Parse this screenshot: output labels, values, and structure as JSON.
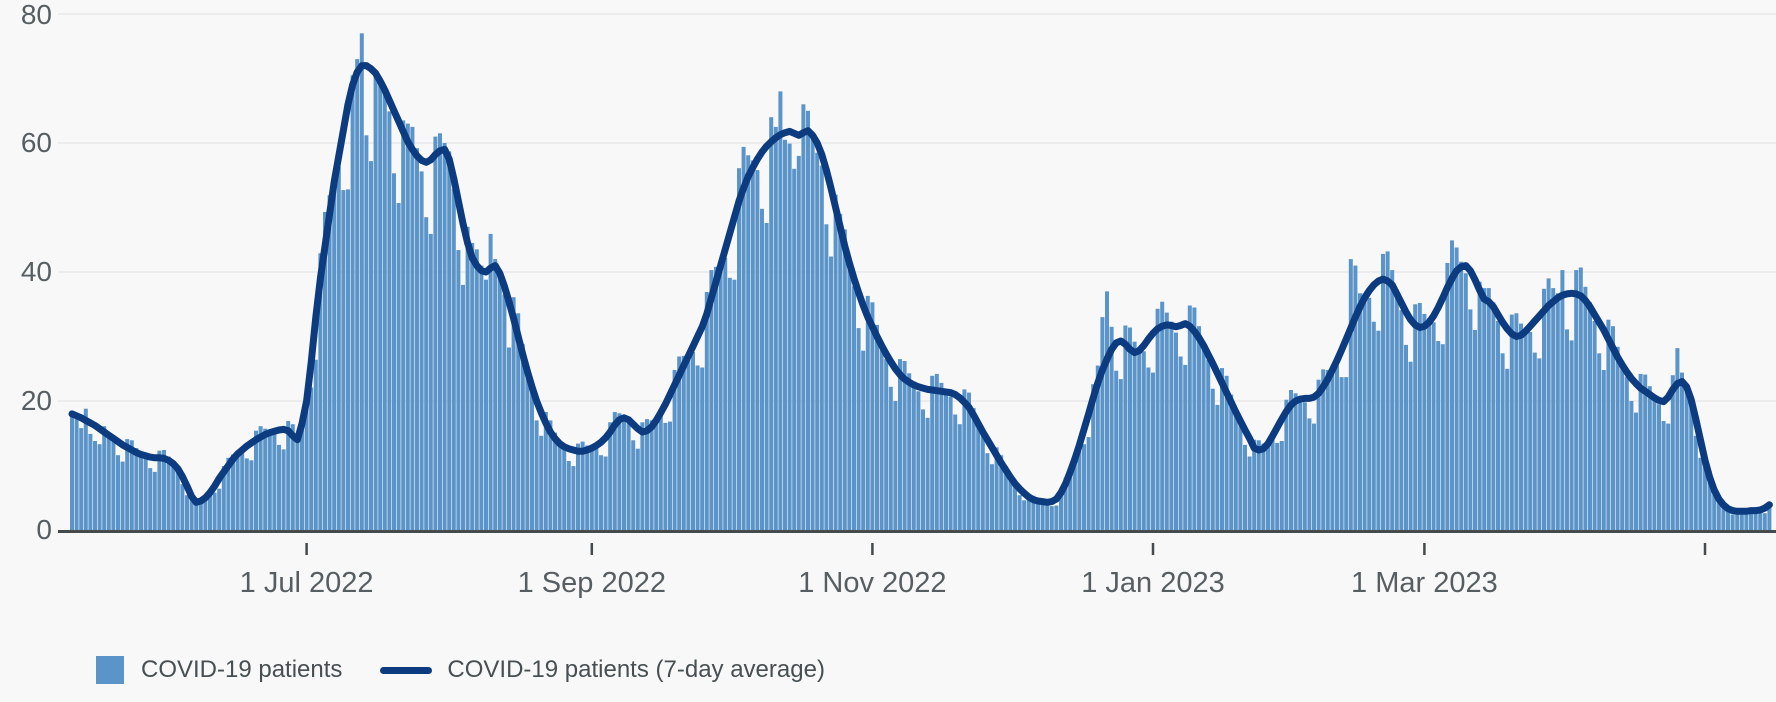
{
  "chart_data": {
    "type": "bar",
    "title": "",
    "xlabel": "",
    "ylabel": "",
    "ylim": [
      0,
      80
    ],
    "y_ticks": [
      0,
      20,
      40,
      60,
      80
    ],
    "grid": "horizontal",
    "legend_position": "bottom-left",
    "x_unit": "day",
    "x_ticks": [
      {
        "label": "1 Jul 2022",
        "day": 51
      },
      {
        "label": "1 Sep 2022",
        "day": 113
      },
      {
        "label": "1 Nov 2022",
        "day": 174
      },
      {
        "label": "1 Jan 2023",
        "day": 235
      },
      {
        "label": "1 Mar 2023",
        "day": 294
      },
      {
        "label": "",
        "day": 355
      }
    ],
    "series": [
      {
        "name": "COVID-19 patients",
        "render": "bar",
        "color": "#5b94c8",
        "values": [
          17.7,
          17.2,
          15.8,
          18.8,
          14.9,
          13.8,
          13.3,
          16.1,
          15.0,
          13.8,
          11.6,
          10.6,
          14.1,
          13.9,
          12.7,
          11.9,
          11.2,
          9.6,
          9.0,
          12.3,
          12.4,
          11.4,
          10.5,
          9.2,
          7.1,
          5.4,
          5.7,
          4.8,
          4.8,
          5.1,
          5.6,
          5.8,
          6.4,
          9.9,
          11.2,
          11.7,
          12.0,
          12.0,
          11.1,
          10.8,
          15.4,
          16.1,
          15.7,
          15.4,
          14.8,
          13.2,
          12.5,
          16.9,
          16.4,
          14.8,
          16.8,
          19.4,
          22.1,
          26.4,
          42.9,
          49.3,
          51.9,
          55.1,
          56.3,
          52.7,
          52.8,
          70.5,
          73.0,
          77.0,
          61.2,
          57.2,
          71.0,
          70.0,
          68.8,
          64.9,
          55.3,
          50.7,
          63.5,
          63.0,
          62.5,
          59.2,
          55.6,
          48.5,
          45.9,
          61.0,
          61.5,
          60.0,
          58.7,
          52.9,
          43.4,
          38.0,
          47.0,
          44.5,
          43.5,
          41.0,
          38.8,
          45.9,
          42.0,
          39.8,
          36.5,
          28.3,
          36.1,
          33.6,
          28.8,
          25.1,
          21.5,
          17.0,
          14.6,
          18.3,
          17.0,
          15.1,
          13.7,
          12.5,
          10.7,
          9.9,
          13.4,
          13.7,
          13.1,
          13.0,
          12.7,
          11.6,
          11.4,
          16.7,
          18.3,
          18.1,
          17.7,
          16.6,
          13.9,
          12.6,
          16.7,
          17.2,
          17.0,
          17.3,
          17.7,
          16.6,
          16.8,
          24.8,
          26.9,
          27.0,
          27.5,
          27.6,
          25.5,
          25.2,
          36.9,
          40.3,
          40.8,
          41.8,
          42.2,
          39.1,
          38.8,
          56.1,
          59.4,
          58.1,
          57.3,
          55.8,
          49.8,
          47.6,
          64.0,
          62.5,
          68.0,
          60.5,
          59.9,
          56.0,
          58.0,
          66.0,
          65.0,
          61.5,
          58.5,
          56.5,
          47.4,
          42.4,
          52.0,
          49.0,
          46.6,
          42.2,
          37.8,
          31.3,
          27.8,
          36.3,
          35.3,
          31.8,
          29.2,
          26.5,
          22.2,
          20.0,
          26.5,
          26.2,
          24.3,
          23.0,
          21.5,
          18.7,
          17.4,
          23.9,
          24.2,
          22.8,
          21.8,
          20.7,
          17.9,
          16.4,
          21.8,
          21.3,
          18.9,
          16.8,
          14.7,
          11.9,
          10.2,
          12.8,
          11.6,
          9.9,
          8.4,
          7.0,
          5.4,
          4.6,
          5.6,
          5.3,
          4.8,
          4.5,
          4.2,
          3.7,
          3.8,
          6.4,
          8.1,
          9.5,
          11.2,
          12.8,
          13.3,
          14.4,
          22.6,
          25.5,
          33.0,
          37.0,
          31.5,
          24.7,
          23.4,
          31.7,
          31.4,
          29.2,
          28.4,
          27.7,
          25.2,
          24.4,
          34.3,
          35.4,
          33.7,
          32.3,
          30.6,
          26.9,
          25.6,
          34.8,
          34.5,
          31.6,
          29.2,
          26.4,
          21.9,
          19.4,
          25.1,
          23.9,
          21.0,
          18.7,
          16.4,
          13.2,
          11.4,
          14.0,
          13.9,
          13.4,
          13.7,
          14.2,
          13.5,
          13.8,
          20.2,
          21.7,
          21.2,
          20.7,
          19.8,
          17.3,
          16.5,
          23.3,
          24.9,
          24.8,
          25.3,
          25.5,
          23.7,
          23.7,
          42.0,
          41.0,
          36.7,
          36.7,
          36.0,
          32.3,
          30.9,
          42.8,
          43.2,
          40.3,
          37.3,
          34.1,
          28.7,
          26.1,
          35.0,
          35.2,
          33.5,
          32.8,
          32.2,
          29.3,
          28.8,
          41.4,
          44.9,
          43.8,
          41.6,
          39.8,
          34.2,
          31.0,
          38.5,
          37.5,
          37.5,
          35.3,
          32.4,
          27.4,
          25.0,
          33.4,
          33.6,
          32.0,
          31.4,
          30.7,
          27.5,
          26.6,
          37.4,
          39.0,
          37.5,
          36.7,
          40.3,
          31.1,
          29.4,
          40.3,
          40.7,
          37.7,
          35.3,
          32.4,
          27.4,
          24.8,
          32.6,
          31.6,
          28.4,
          26.1,
          23.8,
          20.0,
          18.2,
          24.2,
          24.1,
          22.3,
          20.9,
          19.5,
          16.9,
          16.5,
          24.0,
          28.2,
          24.4,
          22.6,
          19.6,
          14.6,
          11.2,
          11.9,
          9.2,
          6.6,
          4.9,
          3.8,
          2.8,
          2.4,
          3.2,
          3.2,
          3.1,
          3.1,
          2.9,
          2.6,
          2.6,
          4.2
        ]
      },
      {
        "name": "COVID-19 patients (7-day average)",
        "render": "line",
        "color": "#0d3b80",
        "values": [
          18.0,
          17.7,
          17.4,
          17.0,
          16.6,
          16.2,
          15.7,
          15.2,
          14.7,
          14.2,
          13.7,
          13.2,
          12.8,
          12.4,
          12.0,
          11.7,
          11.5,
          11.3,
          11.2,
          11.2,
          11.1,
          10.8,
          10.3,
          9.5,
          8.3,
          6.8,
          5.2,
          4.3,
          4.5,
          5.0,
          5.8,
          6.8,
          8.0,
          9.0,
          10.0,
          11.0,
          11.8,
          12.4,
          13.0,
          13.5,
          14.0,
          14.4,
          14.8,
          15.1,
          15.3,
          15.5,
          15.6,
          15.4,
          14.6,
          14.0,
          16.5,
          20.0,
          26.0,
          33.0,
          39.0,
          44.0,
          49.0,
          54.0,
          58.0,
          62.0,
          66.0,
          69.0,
          71.0,
          72.0,
          72.0,
          71.5,
          70.8,
          69.6,
          68.2,
          66.6,
          65.0,
          63.4,
          61.8,
          60.2,
          59.0,
          58.0,
          57.3,
          57.0,
          57.4,
          58.2,
          58.8,
          59.0,
          57.5,
          54.5,
          51.0,
          47.5,
          44.5,
          42.2,
          41.0,
          40.2,
          40.0,
          40.6,
          41.0,
          39.8,
          37.8,
          35.4,
          32.8,
          30.0,
          27.2,
          24.6,
          22.2,
          20.0,
          18.2,
          16.6,
          15.2,
          14.2,
          13.4,
          12.9,
          12.6,
          12.4,
          12.2,
          12.2,
          12.4,
          12.7,
          13.1,
          13.6,
          14.3,
          15.2,
          16.3,
          17.1,
          17.4,
          17.1,
          16.4,
          15.7,
          15.2,
          15.4,
          16.0,
          17.0,
          18.2,
          19.5,
          21.0,
          22.5,
          24.0,
          25.5,
          27.0,
          28.5,
          30.0,
          31.5,
          33.5,
          36.0,
          38.5,
          41.0,
          43.5,
          46.0,
          48.5,
          51.0,
          53.0,
          54.8,
          56.2,
          57.5,
          58.6,
          59.5,
          60.2,
          60.8,
          61.3,
          61.6,
          61.8,
          61.5,
          61.2,
          61.6,
          61.9,
          61.2,
          60.0,
          58.2,
          55.8,
          53.0,
          50.0,
          47.0,
          44.0,
          41.4,
          39.0,
          36.8,
          34.8,
          33.0,
          31.5,
          30.0,
          28.6,
          27.3,
          26.1,
          25.0,
          24.1,
          23.4,
          22.9,
          22.5,
          22.2,
          22.0,
          21.8,
          21.7,
          21.6,
          21.5,
          21.4,
          21.3,
          21.0,
          20.5,
          19.8,
          19.0,
          17.8,
          16.5,
          15.2,
          14.0,
          12.8,
          11.6,
          10.4,
          9.3,
          8.2,
          7.2,
          6.4,
          5.7,
          5.1,
          4.7,
          4.5,
          4.4,
          4.3,
          4.4,
          4.8,
          5.8,
          7.2,
          9.0,
          11.0,
          13.2,
          15.6,
          18.0,
          20.5,
          22.8,
          24.8,
          26.5,
          28.0,
          29.0,
          29.3,
          28.8,
          28.0,
          27.5,
          27.8,
          28.6,
          29.6,
          30.5,
          31.2,
          31.6,
          31.8,
          31.7,
          31.5,
          31.7,
          32.0,
          31.6,
          30.8,
          29.8,
          28.6,
          27.2,
          25.8,
          24.3,
          22.8,
          21.3,
          19.8,
          18.3,
          16.9,
          15.5,
          14.2,
          12.7,
          12.4,
          12.6,
          13.4,
          14.6,
          15.9,
          17.2,
          18.4,
          19.4,
          20.0,
          20.3,
          20.4,
          20.4,
          20.6,
          21.2,
          22.2,
          23.4,
          24.8,
          26.3,
          27.9,
          29.6,
          31.3,
          33.0,
          34.6,
          36.0,
          37.1,
          38.0,
          38.6,
          38.9,
          38.6,
          38.0,
          36.6,
          35.2,
          33.8,
          32.6,
          31.8,
          31.4,
          31.6,
          32.2,
          33.2,
          34.5,
          36.0,
          37.6,
          39.0,
          40.2,
          40.8,
          41.0,
          40.2,
          38.8,
          37.2,
          35.8,
          35.4,
          34.6,
          33.4,
          32.2,
          31.2,
          30.4,
          30.0,
          30.2,
          30.8,
          31.6,
          32.4,
          33.2,
          34.0,
          34.8,
          35.4,
          36.0,
          36.4,
          36.6,
          36.7,
          36.6,
          36.3,
          35.6,
          34.6,
          33.4,
          32.2,
          31.0,
          29.6,
          28.2,
          26.8,
          25.6,
          24.5,
          23.5,
          22.7,
          22.0,
          21.5,
          21.0,
          20.5,
          20.1,
          19.9,
          20.6,
          21.8,
          22.7,
          23.0,
          22.2,
          20.2,
          17.2,
          14.0,
          10.8,
          8.2,
          6.2,
          4.8,
          3.9,
          3.3,
          3.0,
          2.9,
          2.9,
          2.9,
          3.0,
          3.0,
          3.1,
          3.4,
          3.9
        ]
      }
    ]
  },
  "axes": {
    "y_labels": [
      "80",
      "60",
      "40",
      "20",
      "0"
    ],
    "x_labels": [
      "1 Jul 2022",
      "1 Sep 2022",
      "1 Nov 2022",
      "1 Jan 2023",
      "1 Mar 2023"
    ]
  },
  "legend": {
    "items": [
      {
        "label": "COVID-19 patients",
        "swatch": "bar",
        "color": "#5b94c8"
      },
      {
        "label": "COVID-19 patients (7-day average)",
        "swatch": "line",
        "color": "#0d3b80"
      }
    ]
  },
  "colors": {
    "background": "#f8f8f8",
    "bar": "#5b94c8",
    "line": "#0d3b80",
    "gridline": "#e8e8e8",
    "axis": "#454a4c",
    "axis_text": "#575e62",
    "legend_text": "#474f52"
  }
}
